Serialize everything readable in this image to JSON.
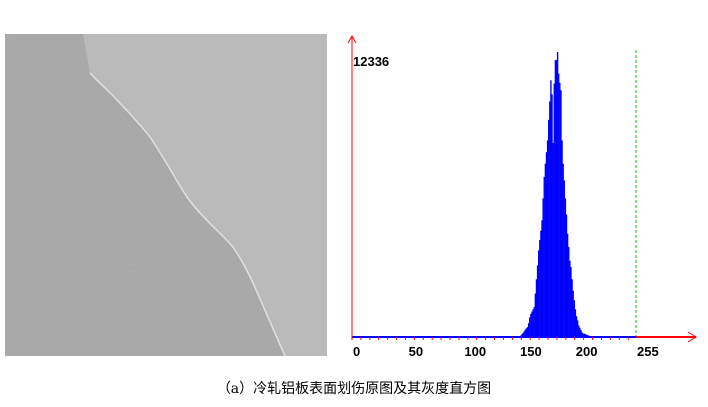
{
  "figure": {
    "caption": "（a）冷轧铝板表面划伤原图及其灰度直方图",
    "image": {
      "subject": "scratch on cold-rolled aluminium sheet surface (grayscale)",
      "colors": {
        "dark_region": "#a5a5a5",
        "light_region": "#bababa",
        "scratch_edge": "#e8e8e8"
      }
    }
  },
  "chart_data": {
    "type": "bar",
    "title": "",
    "xlabel": "",
    "ylabel": "",
    "xlim": [
      0,
      255
    ],
    "ylim": [
      0,
      12336
    ],
    "y_max_label": "12336",
    "x_tick_labels": [
      "0",
      "50",
      "100",
      "150",
      "200",
      "255"
    ],
    "x_ticks": [
      0,
      50,
      100,
      150,
      200,
      255
    ],
    "grid": false,
    "range_markers": [
      0,
      255
    ],
    "colors": {
      "bars": "#0000ff",
      "axis": "#ff0000",
      "markers": "#00cc00"
    },
    "x": [
      150,
      151,
      152,
      153,
      154,
      155,
      156,
      157,
      158,
      159,
      160,
      161,
      162,
      163,
      164,
      165,
      166,
      167,
      168,
      169,
      170,
      171,
      172,
      173,
      174,
      175,
      176,
      177,
      178,
      179,
      180,
      181,
      182,
      183,
      184,
      185,
      186,
      187,
      188,
      189,
      190,
      191,
      192,
      193,
      194,
      195,
      196,
      197,
      198,
      199,
      200,
      201,
      202,
      203,
      204,
      205,
      206,
      207,
      208,
      209,
      210,
      211,
      212,
      213,
      214,
      215,
      216
    ],
    "values": [
      20,
      70,
      120,
      180,
      250,
      320,
      380,
      430,
      600,
      850,
      1000,
      1100,
      1200,
      1300,
      1880,
      2500,
      3100,
      3750,
      4200,
      4600,
      5050,
      6000,
      6930,
      7500,
      8000,
      8510,
      9400,
      10200,
      11110,
      10500,
      8400,
      10970,
      11980,
      12000,
      12336,
      11400,
      11000,
      10680,
      8510,
      7500,
      6780,
      6000,
      5300,
      4470,
      3900,
      3300,
      3030,
      2500,
      2000,
      1590,
      1200,
      900,
      720,
      500,
      400,
      300,
      200,
      150,
      150,
      120,
      100,
      80,
      60,
      45,
      30,
      20,
      10
    ]
  }
}
